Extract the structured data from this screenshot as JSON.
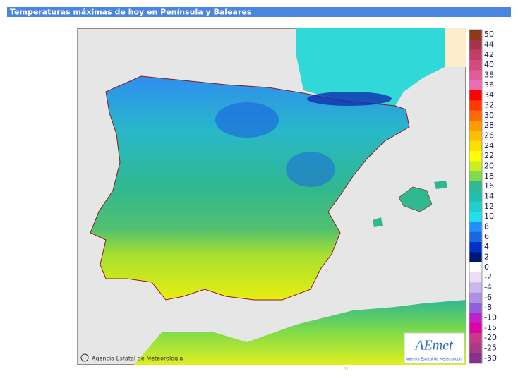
{
  "header": {
    "title": "Temperaturas máximas de hoy en Península y Baleares"
  },
  "map": {
    "credit": "Agencia Estatal de Meteorología",
    "longitude_label": "0º"
  },
  "logo": {
    "name": "AEmet",
    "subtitle": "Agencia Estatal de Meteorología"
  },
  "legend": {
    "values": [
      50,
      44,
      42,
      40,
      38,
      36,
      34,
      32,
      30,
      28,
      26,
      24,
      22,
      20,
      18,
      16,
      14,
      12,
      10,
      8,
      6,
      4,
      2,
      0,
      -2,
      -4,
      -6,
      -8,
      -10,
      -15,
      -20,
      -25,
      -30
    ],
    "colors": [
      "#8b3a1a",
      "#a8324e",
      "#c23c66",
      "#d4497e",
      "#e25a98",
      "#f06cb0",
      "#ff0000",
      "#ff3a00",
      "#ff6a00",
      "#ff9a00",
      "#ffbe00",
      "#ffdd00",
      "#ffff00",
      "#c8f020",
      "#80dc48",
      "#30b890",
      "#20c0b0",
      "#20d0d0",
      "#20e0f0",
      "#1e90ff",
      "#1a68e0",
      "#0030c8",
      "#00157a",
      "#ffffff",
      "#e8def6",
      "#cdb8ee",
      "#b090e6",
      "#9060dc",
      "#c020c8",
      "#e000a8",
      "#c83888",
      "#a83a88",
      "#88308c"
    ]
  }
}
